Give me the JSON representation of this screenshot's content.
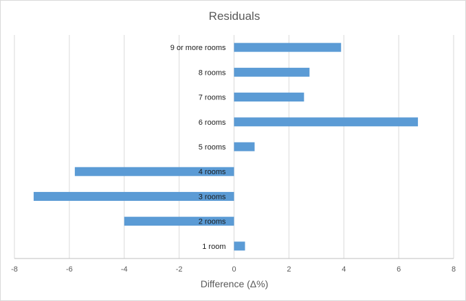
{
  "chart_data": {
    "type": "bar",
    "orientation": "horizontal",
    "title": "Residuals",
    "xlabel": "Difference (Δ%)",
    "ylabel": "",
    "xlim": [
      -8,
      8
    ],
    "xticks": [
      -8,
      -6,
      -4,
      -2,
      0,
      2,
      4,
      6,
      8
    ],
    "grid": true,
    "legend": "none",
    "bar_color": "#5b9bd5",
    "categories": [
      "1 room",
      "2 rooms",
      "3 rooms",
      "4 rooms",
      "5 rooms",
      "6 rooms",
      "7 rooms",
      "8 rooms",
      "9 or more rooms"
    ],
    "values": [
      0.4,
      -4.0,
      -7.3,
      -5.8,
      0.75,
      6.7,
      2.55,
      2.75,
      3.9
    ]
  }
}
